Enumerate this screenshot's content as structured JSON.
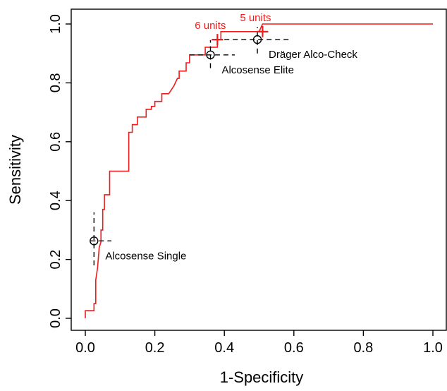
{
  "chart_data": {
    "type": "line",
    "title": "",
    "xlabel": "1-Specificity",
    "ylabel": "Sensitivity",
    "xlim": [
      0,
      1
    ],
    "ylim": [
      0,
      1
    ],
    "x_ticks": [
      0.0,
      0.2,
      0.4,
      0.6,
      0.8,
      1.0
    ],
    "y_ticks": [
      0.0,
      0.2,
      0.4,
      0.6,
      0.8,
      1.0
    ],
    "x_tick_labels": [
      "0.0",
      "0.2",
      "0.4",
      "0.6",
      "0.8",
      "1.0"
    ],
    "y_tick_labels": [
      "0.0",
      "0.2",
      "0.4",
      "0.6",
      "0.8",
      "1.0"
    ],
    "grid": false,
    "colors": {
      "curve": "#ee1c1c",
      "markers": "#000000"
    },
    "series": [
      {
        "color": "#ee1c1c",
        "points": [
          [
            0.0,
            0.0
          ],
          [
            0.0,
            0.026
          ],
          [
            0.025,
            0.026
          ],
          [
            0.025,
            0.05
          ],
          [
            0.03,
            0.05
          ],
          [
            0.03,
            0.13
          ],
          [
            0.035,
            0.17
          ],
          [
            0.04,
            0.24
          ],
          [
            0.045,
            0.26
          ],
          [
            0.045,
            0.3
          ],
          [
            0.05,
            0.3
          ],
          [
            0.05,
            0.37
          ],
          [
            0.055,
            0.37
          ],
          [
            0.055,
            0.42
          ],
          [
            0.07,
            0.42
          ],
          [
            0.07,
            0.5
          ],
          [
            0.125,
            0.5
          ],
          [
            0.125,
            0.632
          ],
          [
            0.135,
            0.632
          ],
          [
            0.135,
            0.658
          ],
          [
            0.15,
            0.658
          ],
          [
            0.15,
            0.684
          ],
          [
            0.175,
            0.684
          ],
          [
            0.175,
            0.71
          ],
          [
            0.19,
            0.71
          ],
          [
            0.19,
            0.72
          ],
          [
            0.2,
            0.72
          ],
          [
            0.2,
            0.737
          ],
          [
            0.22,
            0.737
          ],
          [
            0.22,
            0.763
          ],
          [
            0.24,
            0.763
          ],
          [
            0.255,
            0.79
          ],
          [
            0.265,
            0.815
          ],
          [
            0.27,
            0.815
          ],
          [
            0.27,
            0.84
          ],
          [
            0.29,
            0.84
          ],
          [
            0.29,
            0.868
          ],
          [
            0.3,
            0.868
          ],
          [
            0.3,
            0.895
          ],
          [
            0.345,
            0.895
          ],
          [
            0.345,
            0.921
          ],
          [
            0.38,
            0.921
          ],
          [
            0.38,
            0.947
          ],
          [
            0.39,
            0.947
          ],
          [
            0.39,
            0.974
          ],
          [
            0.5,
            0.974
          ],
          [
            0.51,
            1.0
          ],
          [
            1.0,
            1.0
          ]
        ]
      }
    ],
    "thresholds": [
      {
        "label": "6 units",
        "x": 0.38,
        "y": 0.947
      },
      {
        "label": "5 units",
        "x": 0.51,
        "y": 0.974
      }
    ],
    "devices": [
      {
        "name": "Alcosense Single",
        "x": 0.025,
        "y": 0.263,
        "x_ci": [
          0.015,
          0.075
        ],
        "y_ci": [
          0.18,
          0.36
        ]
      },
      {
        "name": "Alcosense Elite",
        "x": 0.36,
        "y": 0.895,
        "x_ci": [
          0.3,
          0.43
        ],
        "y_ci": [
          0.85,
          0.945
        ]
      },
      {
        "name": "Dräger Alco-Check",
        "x": 0.495,
        "y": 0.947,
        "x_ci": [
          0.4,
          0.59
        ],
        "y_ci": [
          0.9,
          0.99
        ]
      }
    ]
  }
}
